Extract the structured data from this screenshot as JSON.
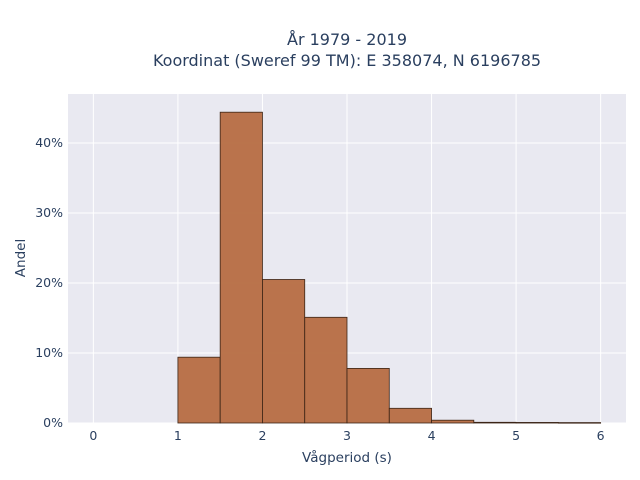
{
  "chart_data": {
    "type": "bar",
    "title_lines": [
      "År 1979 - 2019",
      "Koordinat (Sweref 99 TM): E 358074, N 6196785"
    ],
    "xlabel": "Vågperiod (s)",
    "ylabel": "Andel",
    "xlim": [
      -0.3,
      6.3
    ],
    "ylim": [
      0,
      0.47
    ],
    "xticks": [
      0,
      1,
      2,
      3,
      4,
      5,
      6
    ],
    "xtick_labels": [
      "0",
      "1",
      "2",
      "3",
      "4",
      "5",
      "6"
    ],
    "yticks": [
      0,
      0.1,
      0.2,
      0.3,
      0.4
    ],
    "ytick_labels": [
      "0%",
      "10%",
      "20%",
      "30%",
      "40%"
    ],
    "bin_width": 0.5,
    "bins": [
      {
        "start": 1.0,
        "end": 1.5,
        "value": 0.094
      },
      {
        "start": 1.5,
        "end": 2.0,
        "value": 0.444
      },
      {
        "start": 2.0,
        "end": 2.5,
        "value": 0.205
      },
      {
        "start": 2.5,
        "end": 3.0,
        "value": 0.151
      },
      {
        "start": 3.0,
        "end": 3.5,
        "value": 0.078
      },
      {
        "start": 3.5,
        "end": 4.0,
        "value": 0.021
      },
      {
        "start": 4.0,
        "end": 4.5,
        "value": 0.004
      },
      {
        "start": 4.5,
        "end": 5.0,
        "value": 0.001
      },
      {
        "start": 5.0,
        "end": 5.5,
        "value": 0.0008
      },
      {
        "start": 5.5,
        "end": 6.0,
        "value": 0.0006
      }
    ],
    "bar_color": "#b5683e",
    "bar_edge_color": "#3b2416",
    "plot_bg": "#e9e9f1",
    "grid": true,
    "grid_color": "#ffffff",
    "legend": "none"
  }
}
